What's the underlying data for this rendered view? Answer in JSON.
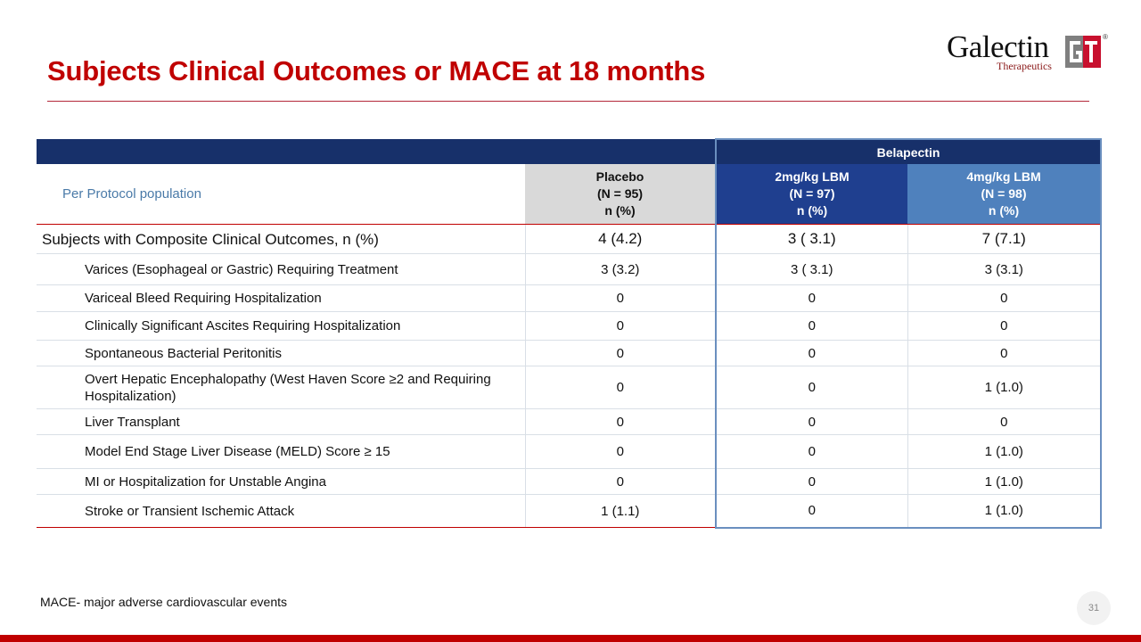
{
  "slide": {
    "title": "Subjects Clinical Outcomes or MACE at 18 months",
    "footnote": "MACE- major adverse cardiovascular events",
    "page_number": "31"
  },
  "logo": {
    "name": "Galectin",
    "subtitle": "Therapeutics",
    "mark_letters": "GT",
    "registered": "®",
    "colors": {
      "red": "#c8102e",
      "gray": "#7f7f7f"
    }
  },
  "table": {
    "group_header": "Belapectin",
    "population_label": "Per Protocol population",
    "columns": [
      {
        "name": "Placebo",
        "n": "(N = 95)",
        "unit": "n (%)"
      },
      {
        "name": "2mg/kg LBM",
        "n": "(N = 97)",
        "unit": "n (%)"
      },
      {
        "name": "4mg/kg LBM",
        "n": "(N = 98)",
        "unit": "n (%)"
      }
    ],
    "summary_row": {
      "label": "Subjects with Composite Clinical Outcomes, n (%)",
      "values": [
        "4 (4.2)",
        "3 ( 3.1)",
        "7 (7.1)"
      ]
    },
    "rows": [
      {
        "label": "Varices (Esophageal or Gastric) Requiring Treatment",
        "values": [
          "3 (3.2)",
          "3 ( 3.1)",
          "3 (3.1)"
        ]
      },
      {
        "label": "Variceal Bleed Requiring Hospitalization",
        "values": [
          "0",
          "0",
          "0"
        ]
      },
      {
        "label": "Clinically Significant Ascites Requiring Hospitalization",
        "values": [
          "0",
          "0",
          "0"
        ]
      },
      {
        "label": "Spontaneous Bacterial Peritonitis",
        "values": [
          "0",
          "0",
          "0"
        ]
      },
      {
        "label": "Overt Hepatic Encephalopathy (West Haven Score ≥2 and Requiring Hospitalization)",
        "values": [
          "0",
          "0",
          "1 (1.0)"
        ]
      },
      {
        "label": "Liver Transplant",
        "values": [
          "0",
          "0",
          "0"
        ]
      },
      {
        "label": "Model End Stage Liver Disease (MELD) Score ≥ 15",
        "values": [
          "0",
          "0",
          "1 (1.0)"
        ]
      },
      {
        "label": "MI or Hospitalization for Unstable Angina",
        "values": [
          "0",
          "0",
          "1 (1.0)"
        ]
      },
      {
        "label": "Stroke or Transient Ischemic Attack",
        "values": [
          "1 (1.1)",
          "0",
          "1 (1.0)"
        ]
      }
    ]
  }
}
